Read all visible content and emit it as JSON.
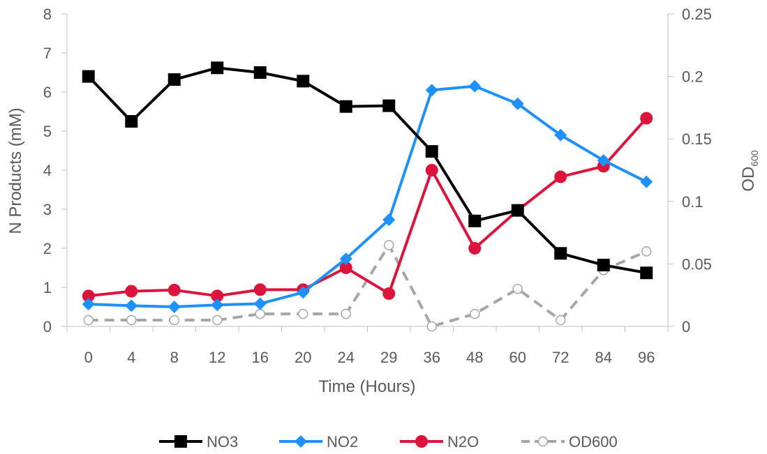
{
  "chart_data": {
    "type": "line",
    "xlabel": "Time (Hours)",
    "ylabel": "N Products (mM)",
    "y2label": "OD",
    "y2label_sub": "600",
    "categories": [
      "0",
      "4",
      "8",
      "12",
      "16",
      "20",
      "24",
      "29",
      "36",
      "48",
      "60",
      "72",
      "84",
      "96"
    ],
    "ylim": [
      0,
      8
    ],
    "y_ticks": [
      "0",
      "1",
      "2",
      "3",
      "4",
      "5",
      "6",
      "7",
      "8"
    ],
    "y2lim": [
      0,
      0.25
    ],
    "y2_ticks": [
      "0",
      "0.05",
      "0.1",
      "0.15",
      "0.2",
      "0.25"
    ],
    "grid": false,
    "legend_position": "bottom",
    "series": [
      {
        "name": "NO3",
        "axis": "left",
        "color": "#000000",
        "marker": "square",
        "dash": "solid",
        "values": [
          6.4,
          5.25,
          6.32,
          6.62,
          6.5,
          6.28,
          5.63,
          5.65,
          4.48,
          2.7,
          2.97,
          1.87,
          1.57,
          1.37
        ]
      },
      {
        "name": "NO2",
        "axis": "left",
        "color": "#1E90FF",
        "marker": "diamond",
        "dash": "solid",
        "values": [
          0.57,
          0.53,
          0.5,
          0.55,
          0.58,
          0.87,
          1.73,
          2.73,
          6.05,
          6.15,
          5.7,
          4.9,
          4.25,
          3.7
        ]
      },
      {
        "name": "N2O",
        "axis": "left",
        "color": "#DC143C",
        "marker": "circle",
        "dash": "solid",
        "values": [
          0.78,
          0.9,
          0.93,
          0.78,
          0.94,
          0.94,
          1.5,
          0.84,
          4.0,
          2.0,
          2.97,
          3.83,
          4.1,
          5.33
        ]
      },
      {
        "name": "OD600",
        "axis": "right",
        "color": "#A6A6A6",
        "marker": "open-circle",
        "dash": "dashed",
        "values": [
          0.005,
          0.005,
          0.005,
          0.005,
          0.01,
          0.01,
          0.01,
          0.065,
          0.0,
          0.01,
          0.03,
          0.005,
          0.045,
          0.06
        ]
      }
    ]
  }
}
